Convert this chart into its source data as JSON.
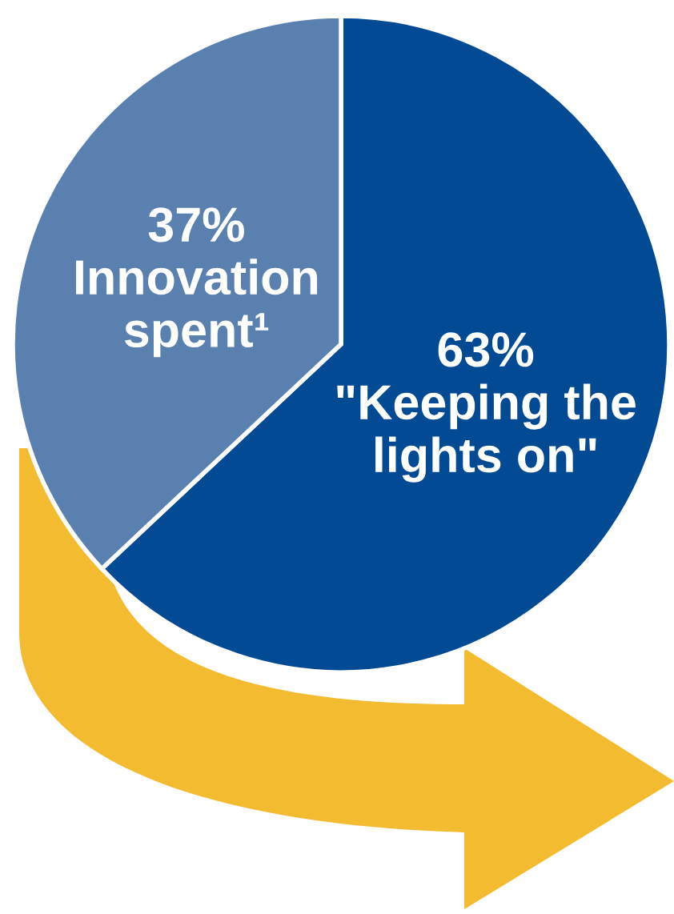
{
  "chart_data": {
    "type": "pie",
    "categories": [
      "\"Keeping the\nlights on\"",
      "Innovation\nspent¹"
    ],
    "values": [
      63,
      37
    ],
    "colors": [
      "#034a94",
      "#5a80b0"
    ],
    "value_labels": [
      "63%",
      "37%"
    ],
    "legend": false
  }
}
